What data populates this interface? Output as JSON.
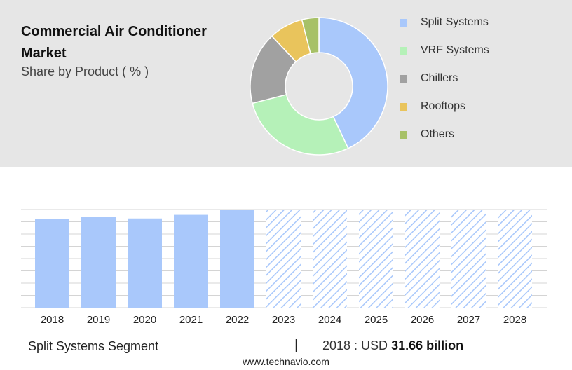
{
  "header": {
    "title": "Commercial Air Conditioner Market",
    "subtitle": "Share by Product ( % )"
  },
  "footer": {
    "segment": "Split Systems Segment",
    "separator": "|",
    "year_label": "2018 : USD",
    "value_label": "31.66 billion",
    "source": "www.technavio.com"
  },
  "chart_data": [
    {
      "type": "pie",
      "donut": true,
      "legend_position": "right",
      "labels": [
        "Split Systems",
        "VRF Systems",
        "Chillers",
        "Rooftops",
        "Others"
      ],
      "values": [
        43,
        28,
        17,
        8,
        4
      ],
      "colors": [
        "#a9c8fb",
        "#b5f1b8",
        "#a1a1a1",
        "#e9c45c",
        "#a7c167"
      ]
    },
    {
      "type": "bar",
      "categories": [
        "2018",
        "2019",
        "2020",
        "2021",
        "2022",
        "2023",
        "2024",
        "2025",
        "2026",
        "2027",
        "2028"
      ],
      "values": [
        31.66,
        32.4,
        31.9,
        33.2,
        35.1,
        null,
        null,
        null,
        null,
        null,
        null
      ],
      "forecast_start": "2023",
      "ylim": [
        0,
        35.1
      ],
      "grid": true,
      "bar_color": "#a9c8fb",
      "forecast_color": "#a9c8fb"
    }
  ]
}
